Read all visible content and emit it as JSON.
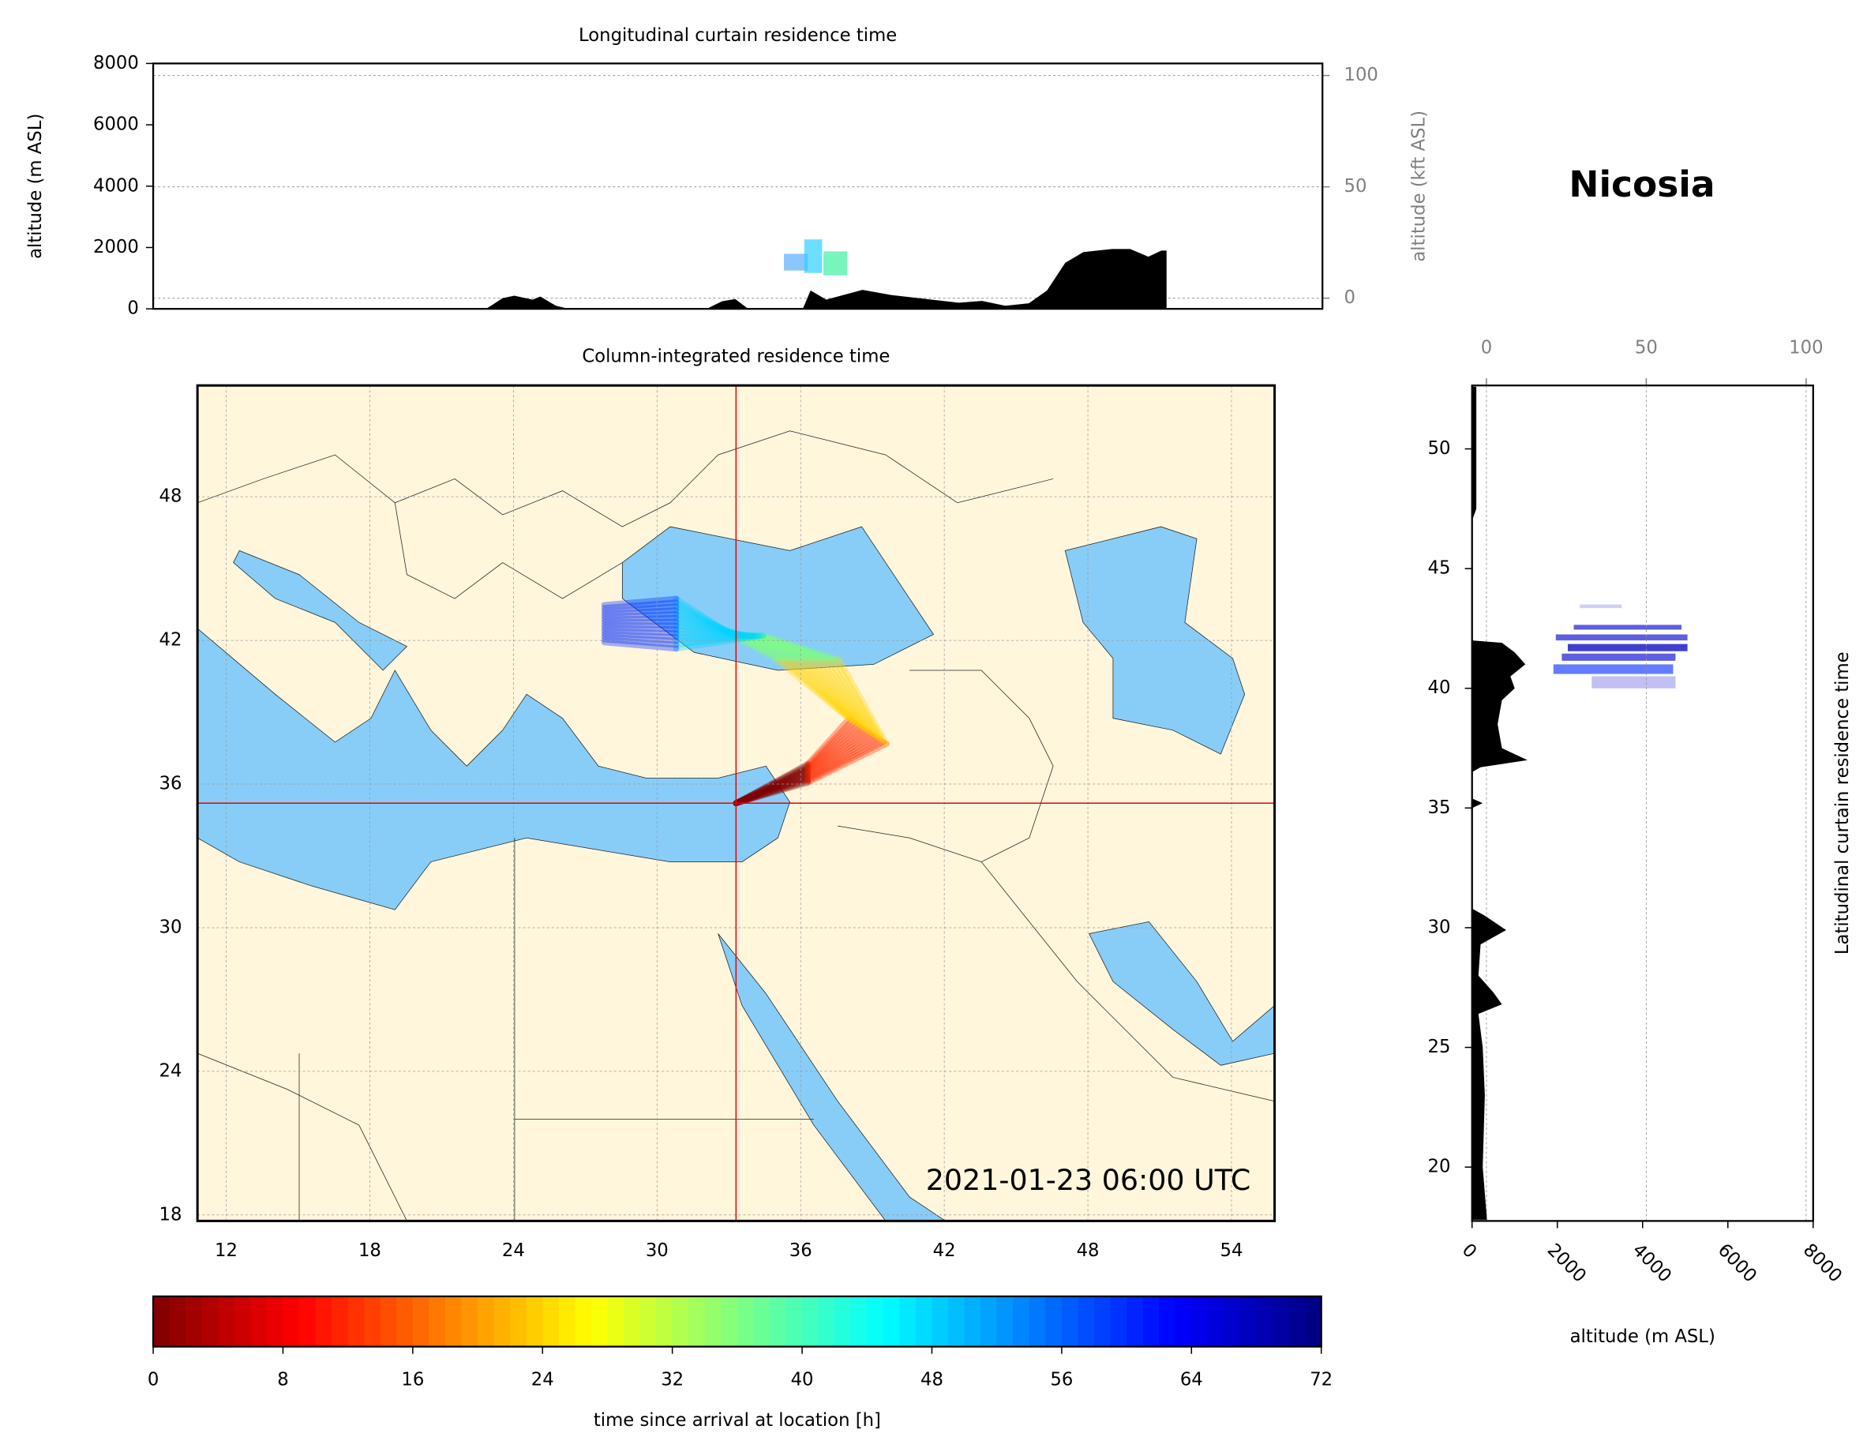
{
  "chart_data": [
    {
      "type": "curtain-lon",
      "title": "Longitudinal curtain residence time",
      "ylabel": "altitude (m ASL)",
      "y2label": "altitude (kft ASL)",
      "xlim": [
        10.8,
        55.8
      ],
      "ylim": [
        0,
        8000
      ],
      "yticks": [
        0,
        2000,
        4000,
        6000,
        8000
      ],
      "y2lim": [
        -4.8,
        105.4
      ],
      "y2ticks": [
        0,
        50,
        100
      ],
      "grid": true,
      "series": [
        {
          "color": "#000000",
          "x": [
            23.6,
            23.8,
            24.25,
            24.7,
            25.4,
            25.7,
            26.3,
            26.8,
            32.1,
            32.7,
            33.2,
            33.7,
            35.8,
            36.1,
            36.7,
            38.1,
            39.2,
            41.8,
            42.7,
            43.6,
            44.5,
            45.2,
            45.9,
            46.6,
            47.7,
            48.4,
            49.1,
            49.6,
            49.8
          ],
          "values": [
            0,
            100,
            350,
            430,
            300,
            400,
            100,
            0,
            0,
            250,
            320,
            0,
            0,
            600,
            300,
            620,
            450,
            200,
            260,
            100,
            180,
            600,
            1500,
            1850,
            1950,
            1950,
            1700,
            1900,
            1900
          ]
        }
      ]
    },
    {
      "type": "map",
      "title": "Column-integrated residence time",
      "annotation": "2021-01-23 06:00 UTC",
      "xlim": [
        10.8,
        55.8
      ],
      "ylim": [
        17.75,
        52.65
      ],
      "xticks": [
        12,
        18,
        24,
        30,
        36,
        42,
        48,
        54
      ],
      "yticks": [
        18,
        24,
        30,
        36,
        42,
        48
      ],
      "grid": true,
      "location": {
        "lon": 33.3,
        "lat": 35.2
      }
    },
    {
      "type": "colorbar",
      "label": "time since arrival at location [h]",
      "lim": [
        0,
        72
      ],
      "ticks": [
        0,
        8,
        16,
        24,
        32,
        40,
        48,
        56,
        64,
        72
      ],
      "colormap": "jet_r"
    },
    {
      "type": "curtain-lat",
      "title": "Latitudinal curtain residence time",
      "xlabel": "altitude (m ASL)",
      "xlim": [
        0,
        8000
      ],
      "xticks": [
        0,
        2000,
        4000,
        6000,
        8000
      ],
      "x2lim": [
        -4.5,
        102.2
      ],
      "x2ticks": [
        0,
        50,
        100
      ],
      "ylim": [
        17.75,
        52.65
      ],
      "yticks": [
        20,
        25,
        30,
        35,
        40,
        45,
        50
      ],
      "grid": true,
      "series": [
        {
          "color": "#000000",
          "y": [
            52.6,
            47.5,
            47.0,
            42.0,
            41.9,
            41.5,
            41.0,
            40.5,
            40.0,
            39.5,
            38.5,
            37.5,
            37.0,
            36.7,
            36.5,
            35.4,
            35.2,
            35.0,
            30.8,
            30.5,
            29.9,
            29.3,
            28.0,
            27.3,
            26.8,
            26.4,
            25.0,
            23.0,
            20.0,
            17.8
          ],
          "values": [
            100,
            100,
            0,
            0,
            700,
            1000,
            1250,
            900,
            1000,
            700,
            600,
            700,
            1300,
            200,
            0,
            0,
            250,
            0,
            0,
            300,
            800,
            200,
            150,
            500,
            700,
            150,
            250,
            300,
            250,
            350
          ]
        }
      ]
    },
    {
      "type": "label",
      "title": "Nicosia"
    }
  ]
}
